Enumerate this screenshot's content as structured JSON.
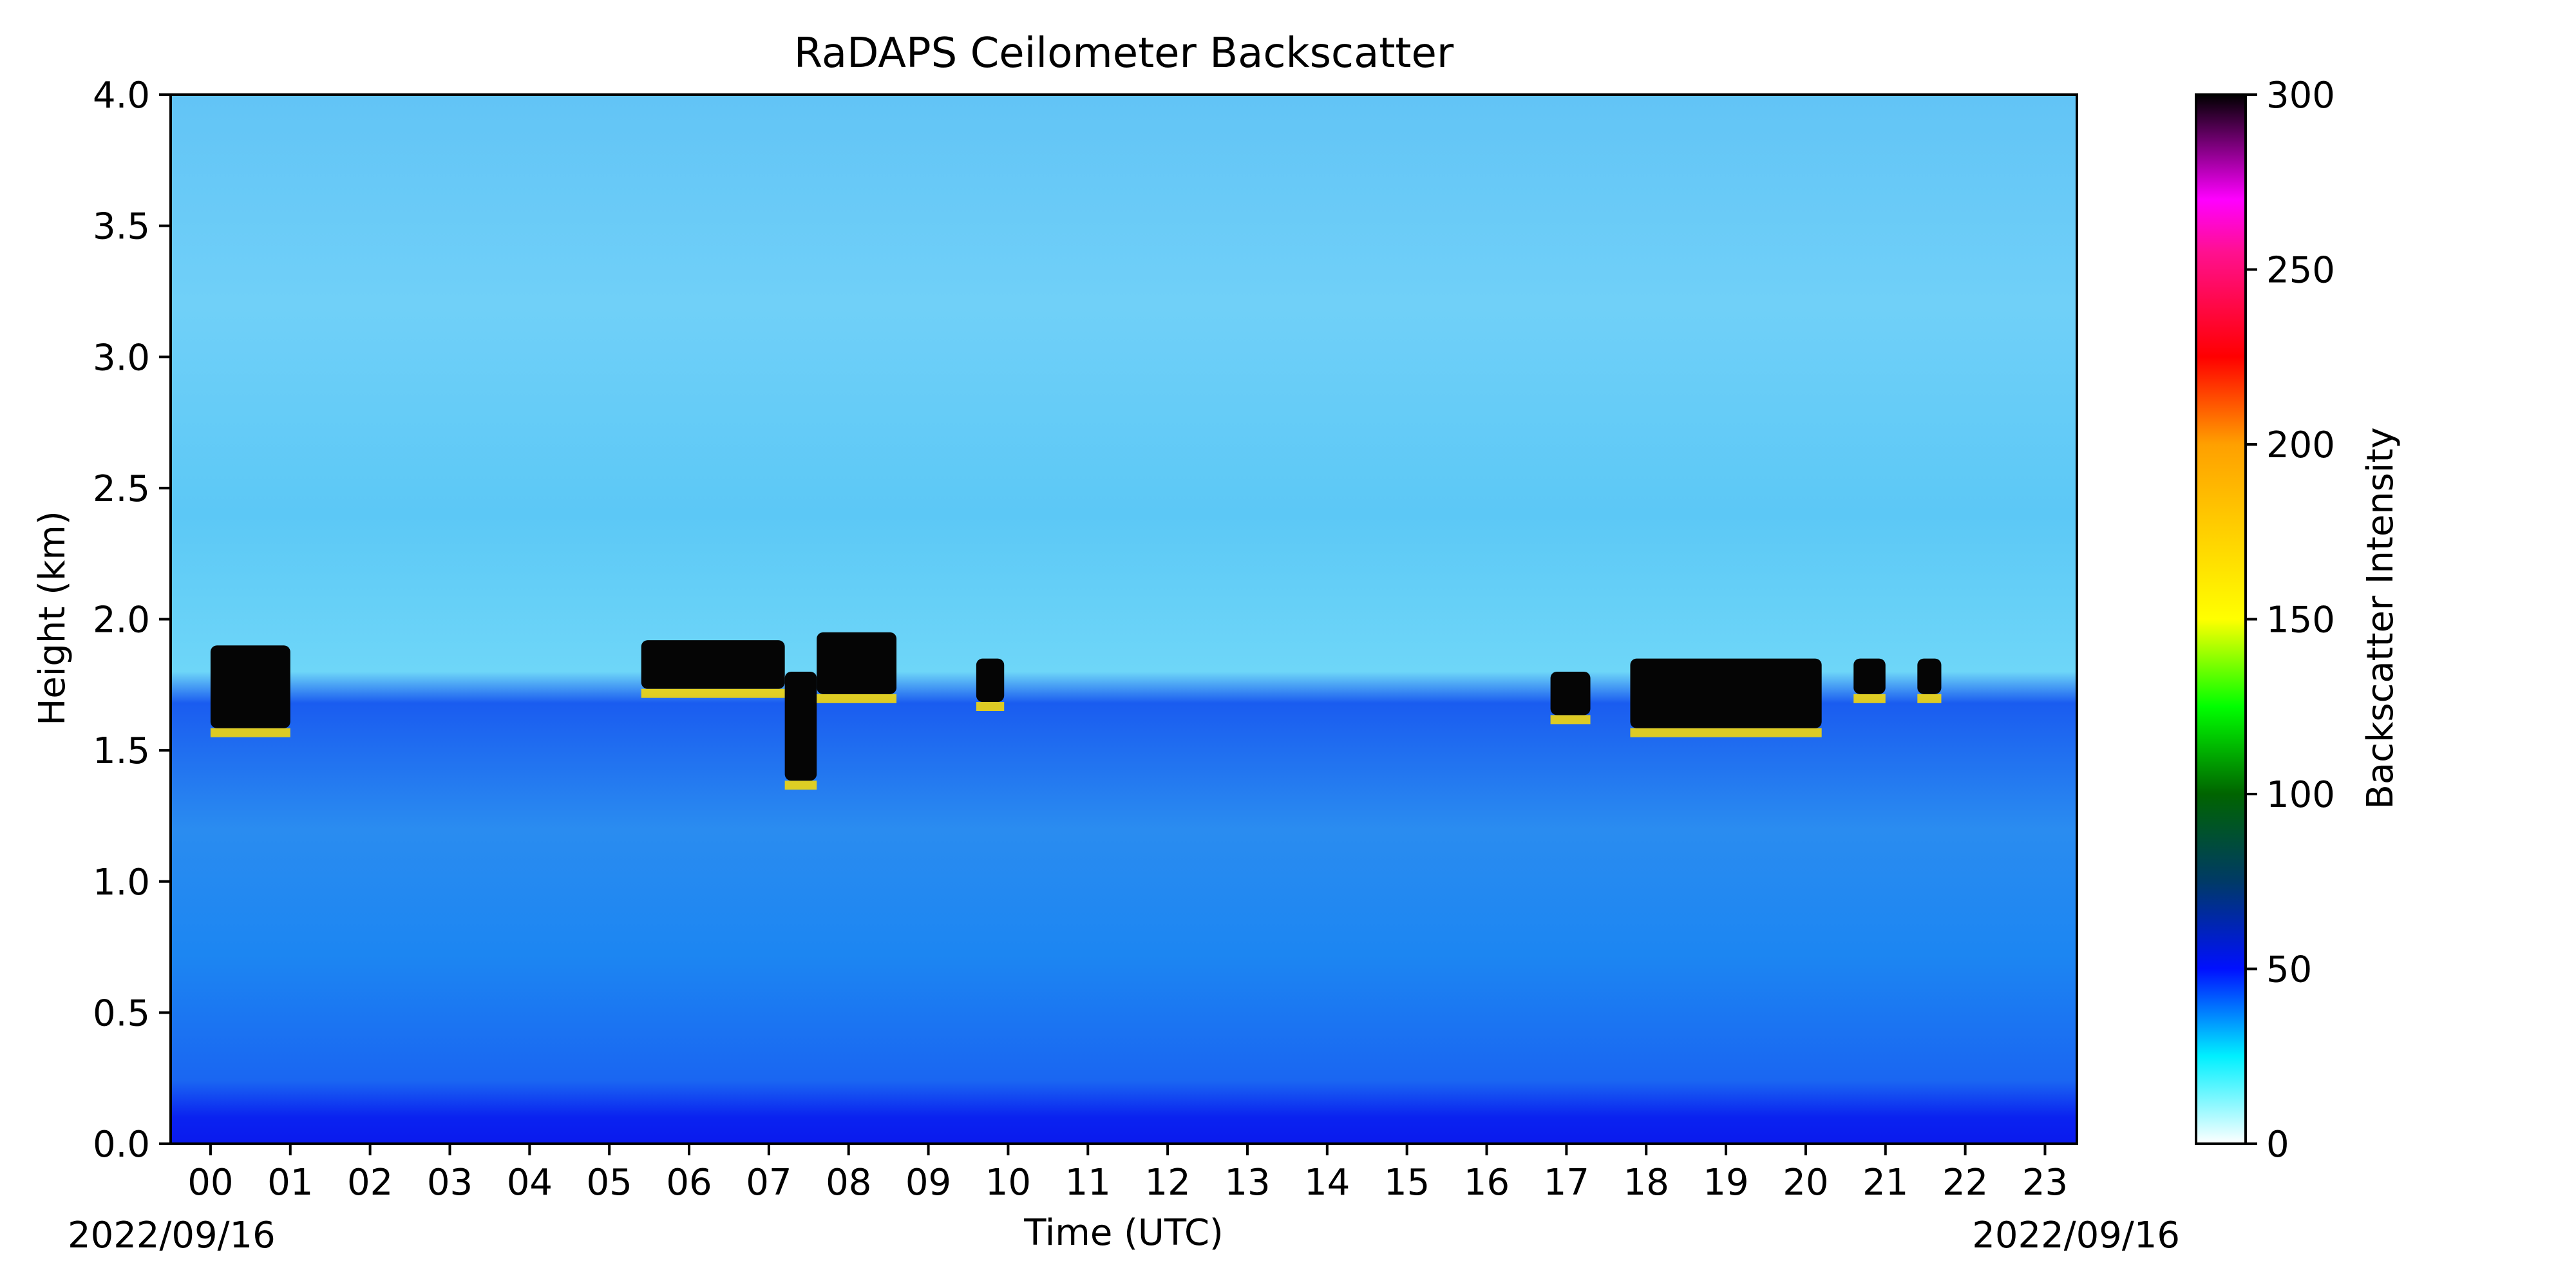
{
  "chart_data": {
    "type": "heatmap",
    "title": "RaDAPS Ceilometer Backscatter",
    "xlabel": "Time (UTC)",
    "ylabel": "Height (km)",
    "x_start_date_label": "2022/09/16",
    "x_end_date_label": "2022/09/16",
    "xlim": [
      -0.5,
      23.4
    ],
    "ylim": [
      0.0,
      4.0
    ],
    "x_ticks": [
      {
        "value": 0,
        "label": "00"
      },
      {
        "value": 1,
        "label": "01"
      },
      {
        "value": 2,
        "label": "02"
      },
      {
        "value": 3,
        "label": "03"
      },
      {
        "value": 4,
        "label": "04"
      },
      {
        "value": 5,
        "label": "05"
      },
      {
        "value": 6,
        "label": "06"
      },
      {
        "value": 7,
        "label": "07"
      },
      {
        "value": 8,
        "label": "08"
      },
      {
        "value": 9,
        "label": "09"
      },
      {
        "value": 10,
        "label": "10"
      },
      {
        "value": 11,
        "label": "11"
      },
      {
        "value": 12,
        "label": "12"
      },
      {
        "value": 13,
        "label": "13"
      },
      {
        "value": 14,
        "label": "14"
      },
      {
        "value": 15,
        "label": "15"
      },
      {
        "value": 16,
        "label": "16"
      },
      {
        "value": 17,
        "label": "17"
      },
      {
        "value": 18,
        "label": "18"
      },
      {
        "value": 19,
        "label": "19"
      },
      {
        "value": 20,
        "label": "20"
      },
      {
        "value": 21,
        "label": "21"
      },
      {
        "value": 22,
        "label": "22"
      },
      {
        "value": 23,
        "label": "23"
      }
    ],
    "y_ticks": [
      {
        "value": 0.0,
        "label": "0.0"
      },
      {
        "value": 0.5,
        "label": "0.5"
      },
      {
        "value": 1.0,
        "label": "1.0"
      },
      {
        "value": 1.5,
        "label": "1.5"
      },
      {
        "value": 2.0,
        "label": "2.0"
      },
      {
        "value": 2.5,
        "label": "2.5"
      },
      {
        "value": 3.0,
        "label": "3.0"
      },
      {
        "value": 3.5,
        "label": "3.5"
      },
      {
        "value": 4.0,
        "label": "4.0"
      }
    ],
    "grid": false,
    "colorbar": {
      "label": "Backscatter Intensity",
      "range": [
        0,
        300
      ],
      "ticks": [
        {
          "value": 0,
          "label": "0"
        },
        {
          "value": 50,
          "label": "50"
        },
        {
          "value": 100,
          "label": "100"
        },
        {
          "value": 150,
          "label": "150"
        },
        {
          "value": 200,
          "label": "200"
        },
        {
          "value": 250,
          "label": "250"
        },
        {
          "value": 300,
          "label": "300"
        }
      ],
      "stops": [
        {
          "value": 0,
          "color": "#ffffff"
        },
        {
          "value": 25,
          "color": "#00f0ff"
        },
        {
          "value": 50,
          "color": "#0010ff"
        },
        {
          "value": 75,
          "color": "#003a66"
        },
        {
          "value": 100,
          "color": "#006400"
        },
        {
          "value": 125,
          "color": "#00ff00"
        },
        {
          "value": 150,
          "color": "#ffff00"
        },
        {
          "value": 200,
          "color": "#ffa000"
        },
        {
          "value": 225,
          "color": "#ff0000"
        },
        {
          "value": 255,
          "color": "#ff1090"
        },
        {
          "value": 270,
          "color": "#ff00ff"
        },
        {
          "value": 300,
          "color": "#000000"
        }
      ]
    },
    "cloud_features": [
      {
        "t_start": 0.0,
        "t_end": 1.0,
        "base_km": 1.55,
        "top_km": 1.9
      },
      {
        "t_start": 5.4,
        "t_end": 7.2,
        "base_km": 1.7,
        "top_km": 1.92
      },
      {
        "t_start": 7.2,
        "t_end": 7.6,
        "base_km": 1.35,
        "top_km": 1.8
      },
      {
        "t_start": 7.6,
        "t_end": 8.6,
        "base_km": 1.68,
        "top_km": 1.95
      },
      {
        "t_start": 9.6,
        "t_end": 9.95,
        "base_km": 1.65,
        "top_km": 1.85
      },
      {
        "t_start": 16.8,
        "t_end": 17.3,
        "base_km": 1.6,
        "top_km": 1.8
      },
      {
        "t_start": 17.8,
        "t_end": 20.2,
        "base_km": 1.55,
        "top_km": 1.85
      },
      {
        "t_start": 20.6,
        "t_end": 21.0,
        "base_km": 1.68,
        "top_km": 1.85
      },
      {
        "t_start": 21.4,
        "t_end": 21.7,
        "base_km": 1.68,
        "top_km": 1.85
      }
    ]
  }
}
